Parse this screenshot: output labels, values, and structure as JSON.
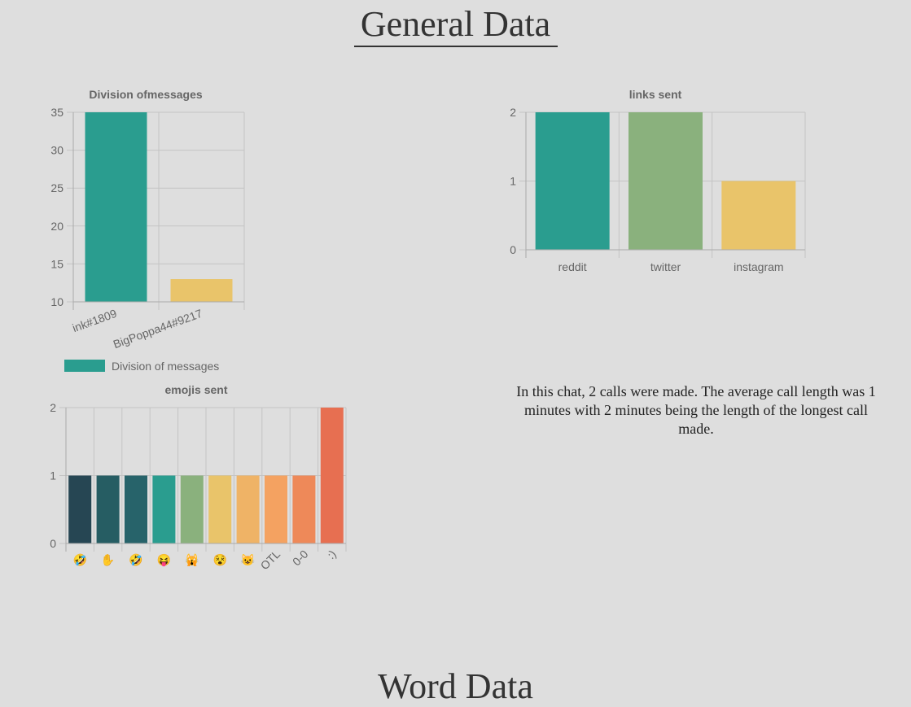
{
  "page": {
    "general_title": "General Data",
    "word_title": "Word Data",
    "calls_text": "In this chat, 2 calls were made. The average call length was 1 minutes with 2 minutes being the length of the longest call made."
  },
  "chart_data": [
    {
      "id": "messages",
      "type": "bar",
      "title": "Division ofmessages",
      "categories": [
        "ink#1809",
        "BigPoppa44#9217"
      ],
      "series": [
        {
          "name": "Division of messages",
          "values": [
            35,
            13
          ]
        }
      ],
      "colors": [
        "#2a9d8f",
        "#e9c46a"
      ],
      "ylim": [
        10,
        35
      ],
      "yticks": [
        10,
        15,
        20,
        25,
        30,
        35
      ],
      "legend": "bottom",
      "grid": true
    },
    {
      "id": "links",
      "type": "bar",
      "title": "links sent",
      "categories": [
        "reddit",
        "twitter",
        "instagram"
      ],
      "values": [
        2,
        2,
        1
      ],
      "colors": [
        "#2a9d8f",
        "#8ab17d",
        "#e9c46a"
      ],
      "ylim": [
        0,
        2
      ],
      "yticks": [
        0,
        1,
        2
      ],
      "grid": true
    },
    {
      "id": "emojis",
      "type": "bar",
      "title": "emojis sent",
      "categories": [
        "🤣",
        "✋",
        "🤣",
        "😝",
        "🙀",
        "😵",
        "😺",
        "OTL",
        "0-0",
        ":)"
      ],
      "values": [
        1,
        1,
        1,
        1,
        1,
        1,
        1,
        1,
        1,
        2
      ],
      "colors": [
        "#264653",
        "#265d63",
        "#27636a",
        "#2a9d8f",
        "#8ab17d",
        "#e9c46a",
        "#efb366",
        "#f4a261",
        "#ee8959",
        "#e76f51"
      ],
      "ylim": [
        0,
        2
      ],
      "yticks": [
        0,
        1,
        2
      ],
      "grid": true
    }
  ]
}
